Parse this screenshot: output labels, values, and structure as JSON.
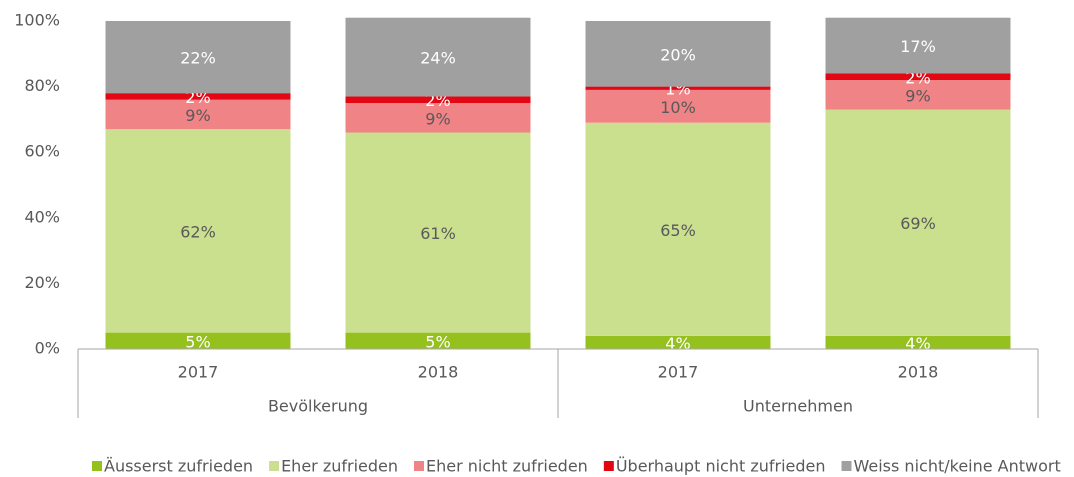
{
  "chart_data": {
    "type": "stacked_bar",
    "categories": [
      "2017",
      "2018",
      "2017",
      "2018"
    ],
    "groups": [
      {
        "name": "Bevölkerung",
        "span": 2
      },
      {
        "name": "Unternehmen",
        "span": 2
      }
    ],
    "ylim": [
      0,
      100
    ],
    "yticks": [
      {
        "value": 0,
        "label": "0%"
      },
      {
        "value": 20,
        "label": "20%"
      },
      {
        "value": 40,
        "label": "40%"
      },
      {
        "value": 60,
        "label": "60%"
      },
      {
        "value": 80,
        "label": "80%"
      },
      {
        "value": 100,
        "label": "100%"
      }
    ],
    "legend": "bottom",
    "series": [
      {
        "name": "Äusserst zufrieden",
        "color": "#95c11f",
        "label_color": "#ffffff",
        "values": [
          5,
          5,
          4,
          4
        ],
        "value_labels": [
          "5%",
          "5%",
          "4%",
          "4%"
        ]
      },
      {
        "name": "Eher zufrieden",
        "color": "#cbe08f",
        "label_color": "#595959",
        "values": [
          62,
          61,
          65,
          69
        ],
        "value_labels": [
          "62%",
          "61%",
          "65%",
          "69%"
        ]
      },
      {
        "name": "Eher nicht zufrieden",
        "color": "#f08385",
        "label_color": "#595959",
        "values": [
          9,
          9,
          10,
          9
        ],
        "value_labels": [
          "9%",
          "9%",
          "10%",
          "9%"
        ]
      },
      {
        "name": "Überhaupt nicht zufrieden",
        "color": "#e30613",
        "label_color": "#ffffff",
        "values": [
          2,
          2,
          1,
          2
        ],
        "value_labels": [
          "2%",
          "2%",
          "1%",
          "2%"
        ]
      },
      {
        "name": "Weiss nicht/keine Antwort",
        "color": "#a0a0a1",
        "label_color": "#ffffff",
        "values": [
          22,
          24,
          20,
          17
        ],
        "value_labels": [
          "22%",
          "24%",
          "20%",
          "17%"
        ]
      }
    ]
  }
}
